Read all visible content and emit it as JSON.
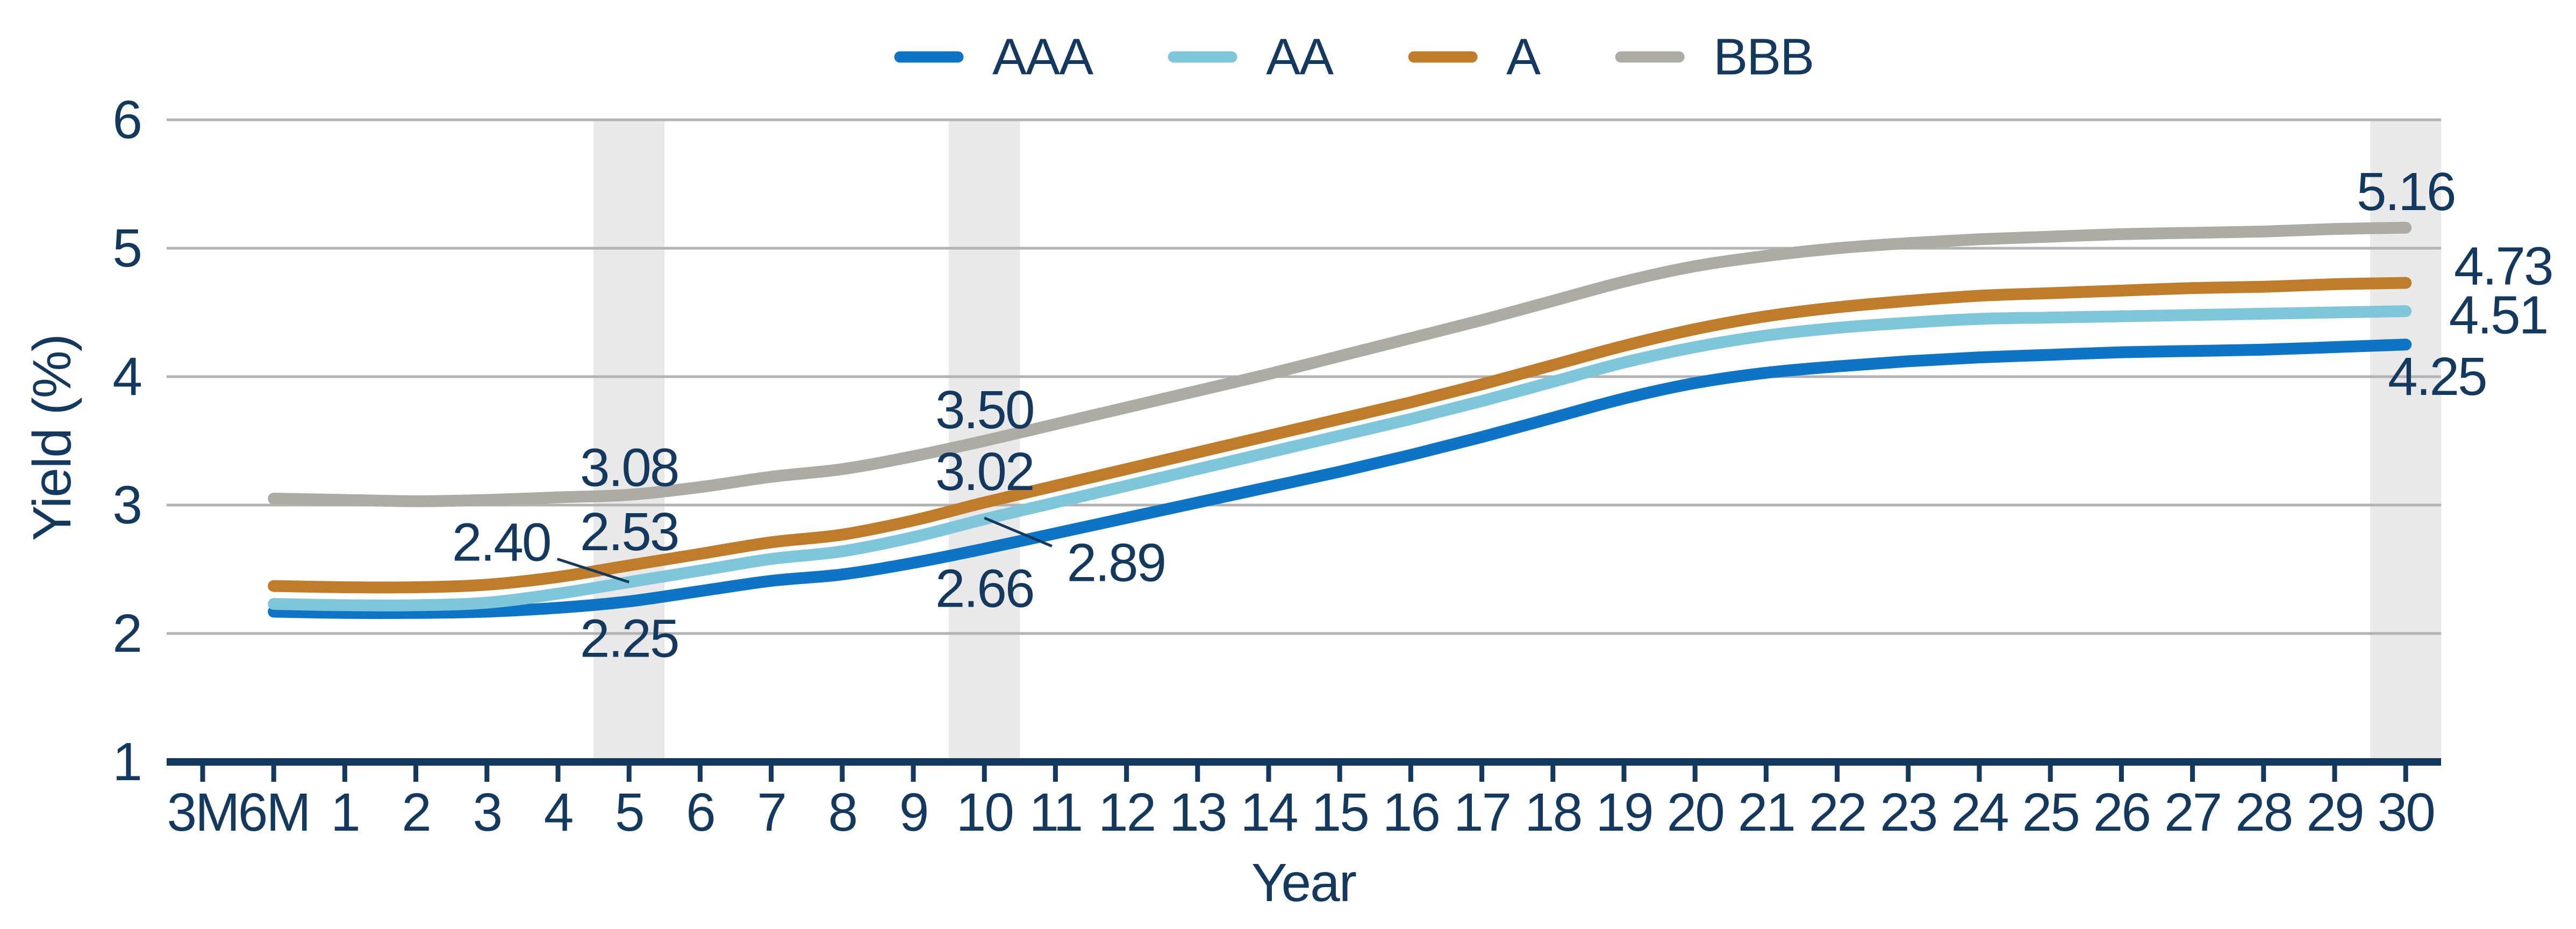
{
  "chart_data": {
    "type": "line",
    "title": "",
    "xlabel": "Year",
    "ylabel": "Yield (%)",
    "ylim": [
      1,
      6
    ],
    "yticks": [
      1,
      2,
      3,
      4,
      5,
      6
    ],
    "grid": "horizontal",
    "legend_position": "top-center",
    "categories": [
      "3M",
      "6M",
      "1",
      "2",
      "3",
      "4",
      "5",
      "6",
      "7",
      "8",
      "9",
      "10",
      "11",
      "12",
      "13",
      "14",
      "15",
      "16",
      "17",
      "18",
      "19",
      "20",
      "21",
      "22",
      "23",
      "24",
      "25",
      "26",
      "27",
      "28",
      "29",
      "30"
    ],
    "series": [
      {
        "name": "AAA",
        "color": "#0E74C6",
        "values": [
          null,
          2.17,
          2.16,
          2.16,
          2.17,
          2.2,
          2.25,
          2.33,
          2.41,
          2.46,
          2.55,
          2.66,
          2.78,
          2.9,
          3.02,
          3.14,
          3.26,
          3.39,
          3.53,
          3.68,
          3.83,
          3.95,
          4.03,
          4.08,
          4.12,
          4.15,
          4.17,
          4.19,
          4.2,
          4.21,
          4.23,
          4.25
        ]
      },
      {
        "name": "AA",
        "color": "#80C6DA",
        "values": [
          null,
          2.23,
          2.22,
          2.22,
          2.24,
          2.31,
          2.4,
          2.49,
          2.58,
          2.64,
          2.75,
          2.89,
          3.02,
          3.15,
          3.28,
          3.41,
          3.54,
          3.67,
          3.81,
          3.96,
          4.11,
          4.23,
          4.32,
          4.38,
          4.42,
          4.45,
          4.46,
          4.47,
          4.48,
          4.49,
          4.5,
          4.51
        ]
      },
      {
        "name": "A",
        "color": "#BF7C2A",
        "values": [
          null,
          2.37,
          2.36,
          2.36,
          2.38,
          2.44,
          2.53,
          2.62,
          2.71,
          2.77,
          2.88,
          3.02,
          3.15,
          3.28,
          3.41,
          3.54,
          3.67,
          3.8,
          3.94,
          4.09,
          4.24,
          4.37,
          4.47,
          4.54,
          4.59,
          4.63,
          4.65,
          4.67,
          4.69,
          4.7,
          4.72,
          4.73
        ]
      },
      {
        "name": "BBB",
        "color": "#ACACA5",
        "values": [
          null,
          3.05,
          3.04,
          3.03,
          3.04,
          3.06,
          3.08,
          3.14,
          3.22,
          3.28,
          3.38,
          3.5,
          3.63,
          3.76,
          3.89,
          4.02,
          4.16,
          4.3,
          4.44,
          4.59,
          4.74,
          4.86,
          4.94,
          5.0,
          5.04,
          5.07,
          5.09,
          5.11,
          5.12,
          5.13,
          5.15,
          5.16
        ]
      }
    ],
    "highlight_bands": {
      "color": "#E9E9E9",
      "categories": [
        "5",
        "10",
        "30"
      ]
    },
    "annotations": [
      {
        "text": "3.08",
        "cat": 6.0,
        "val": 3.29
      },
      {
        "text": "2.53",
        "cat": 6.0,
        "val": 2.79
      },
      {
        "text": "2.40",
        "cat": 4.2,
        "val": 2.71
      },
      {
        "text": "2.25",
        "cat": 6.0,
        "val": 1.96
      },
      {
        "text": "3.50",
        "cat": 11.0,
        "val": 3.74
      },
      {
        "text": "3.02",
        "cat": 11.0,
        "val": 3.26
      },
      {
        "text": "2.66",
        "cat": 11.0,
        "val": 2.35
      },
      {
        "text": "2.89",
        "cat": 12.85,
        "val": 2.55
      },
      {
        "text": "5.16",
        "cat": 31.0,
        "val": 5.44
      },
      {
        "text": "4.73",
        "cat": 32.37,
        "val": 4.86
      },
      {
        "text": "4.51",
        "cat": 32.3,
        "val": 4.48
      },
      {
        "text": "4.25",
        "cat": 31.44,
        "val": 4.0
      }
    ],
    "leader_lines": [
      {
        "from_cat": 4.99,
        "from_val": 2.58,
        "to_cat": 6.0,
        "to_val": 2.4
      },
      {
        "from_cat": 11.0,
        "from_val": 2.9,
        "to_cat": 11.95,
        "to_val": 2.68
      }
    ],
    "colors": {
      "text": "#14395E",
      "axis": "#14395E",
      "gridline": "#B2B2B2",
      "band": "#E9E9E9",
      "background": "#FFFFFF"
    }
  }
}
